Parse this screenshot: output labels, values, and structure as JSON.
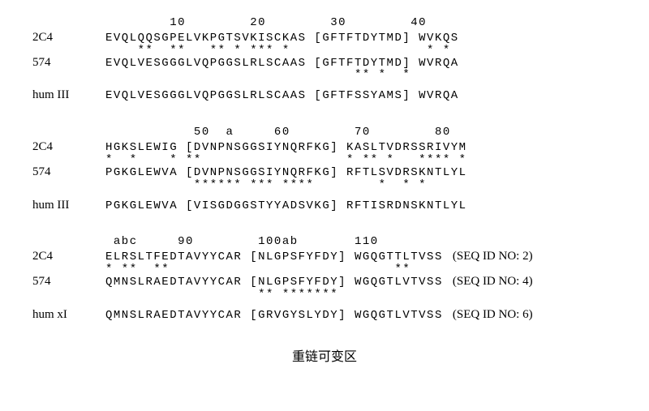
{
  "caption": "重链可变区",
  "labels": {
    "l2c4": "2C4",
    "l574": "574",
    "lhum3": "hum III",
    "lhumx": "hum xI"
  },
  "seqids": {
    "s2": "(SEQ ID NO: 2)",
    "s4": "(SEQ ID NO: 4)",
    "s6": "(SEQ ID NO: 6)"
  },
  "block1": {
    "ruler": "        10        20        30        40",
    "r2c4": "EVQLQQSGPELVKPGTSVKISCKAS [GFTFTDYTMD] WVKQS",
    "stars1": "    **  **   ** * *** *                 * * ",
    "r574": "EVQLVESGGGLVQPGGSLRLSCAAS [GFTFTDYTMD] WVRQA",
    "stars2": "                               ** *  *       ",
    "rhum": "EVQLVESGGGLVQPGGSLRLSCAAS [GFTFSSYAMS] WVRQA"
  },
  "block2": {
    "ruler": "           50  a     60        70        80",
    "r2c4": "HGKSLEWIG [DVNPNSGGSIYNQRFKG] KASLTVDRSSRIVYM",
    "stars1": "*  *    * **                  * ** *   **** *",
    "r574": "PGKGLEWVA [DVNPNSGGSIYNQRFKG] RFTLSVDRSKNTLYL",
    "stars2": "           ****** *** ****        *  * *     ",
    "rhum": "PGKGLEWVA [VISGDGGSTYYADSVKG] RFTISRDNSKNTLYL"
  },
  "block3": {
    "ruler": " abc     90        100ab       110",
    "r2c4": "ELRSLTFEDTAVYYCAR [NLGPSFYFDY] WGQGTTLTVSS",
    "stars1": "* **  **                            **     ",
    "r574": "QMNSLRAEDTAVYYCAR [NLGPSFYFDY] WGQGTLVTVSS",
    "stars2": "                   ** *******              ",
    "rhum": "QMNSLRAEDTAVYYCAR [GRVGYSLYDY] WGQGTLVTVSS"
  }
}
